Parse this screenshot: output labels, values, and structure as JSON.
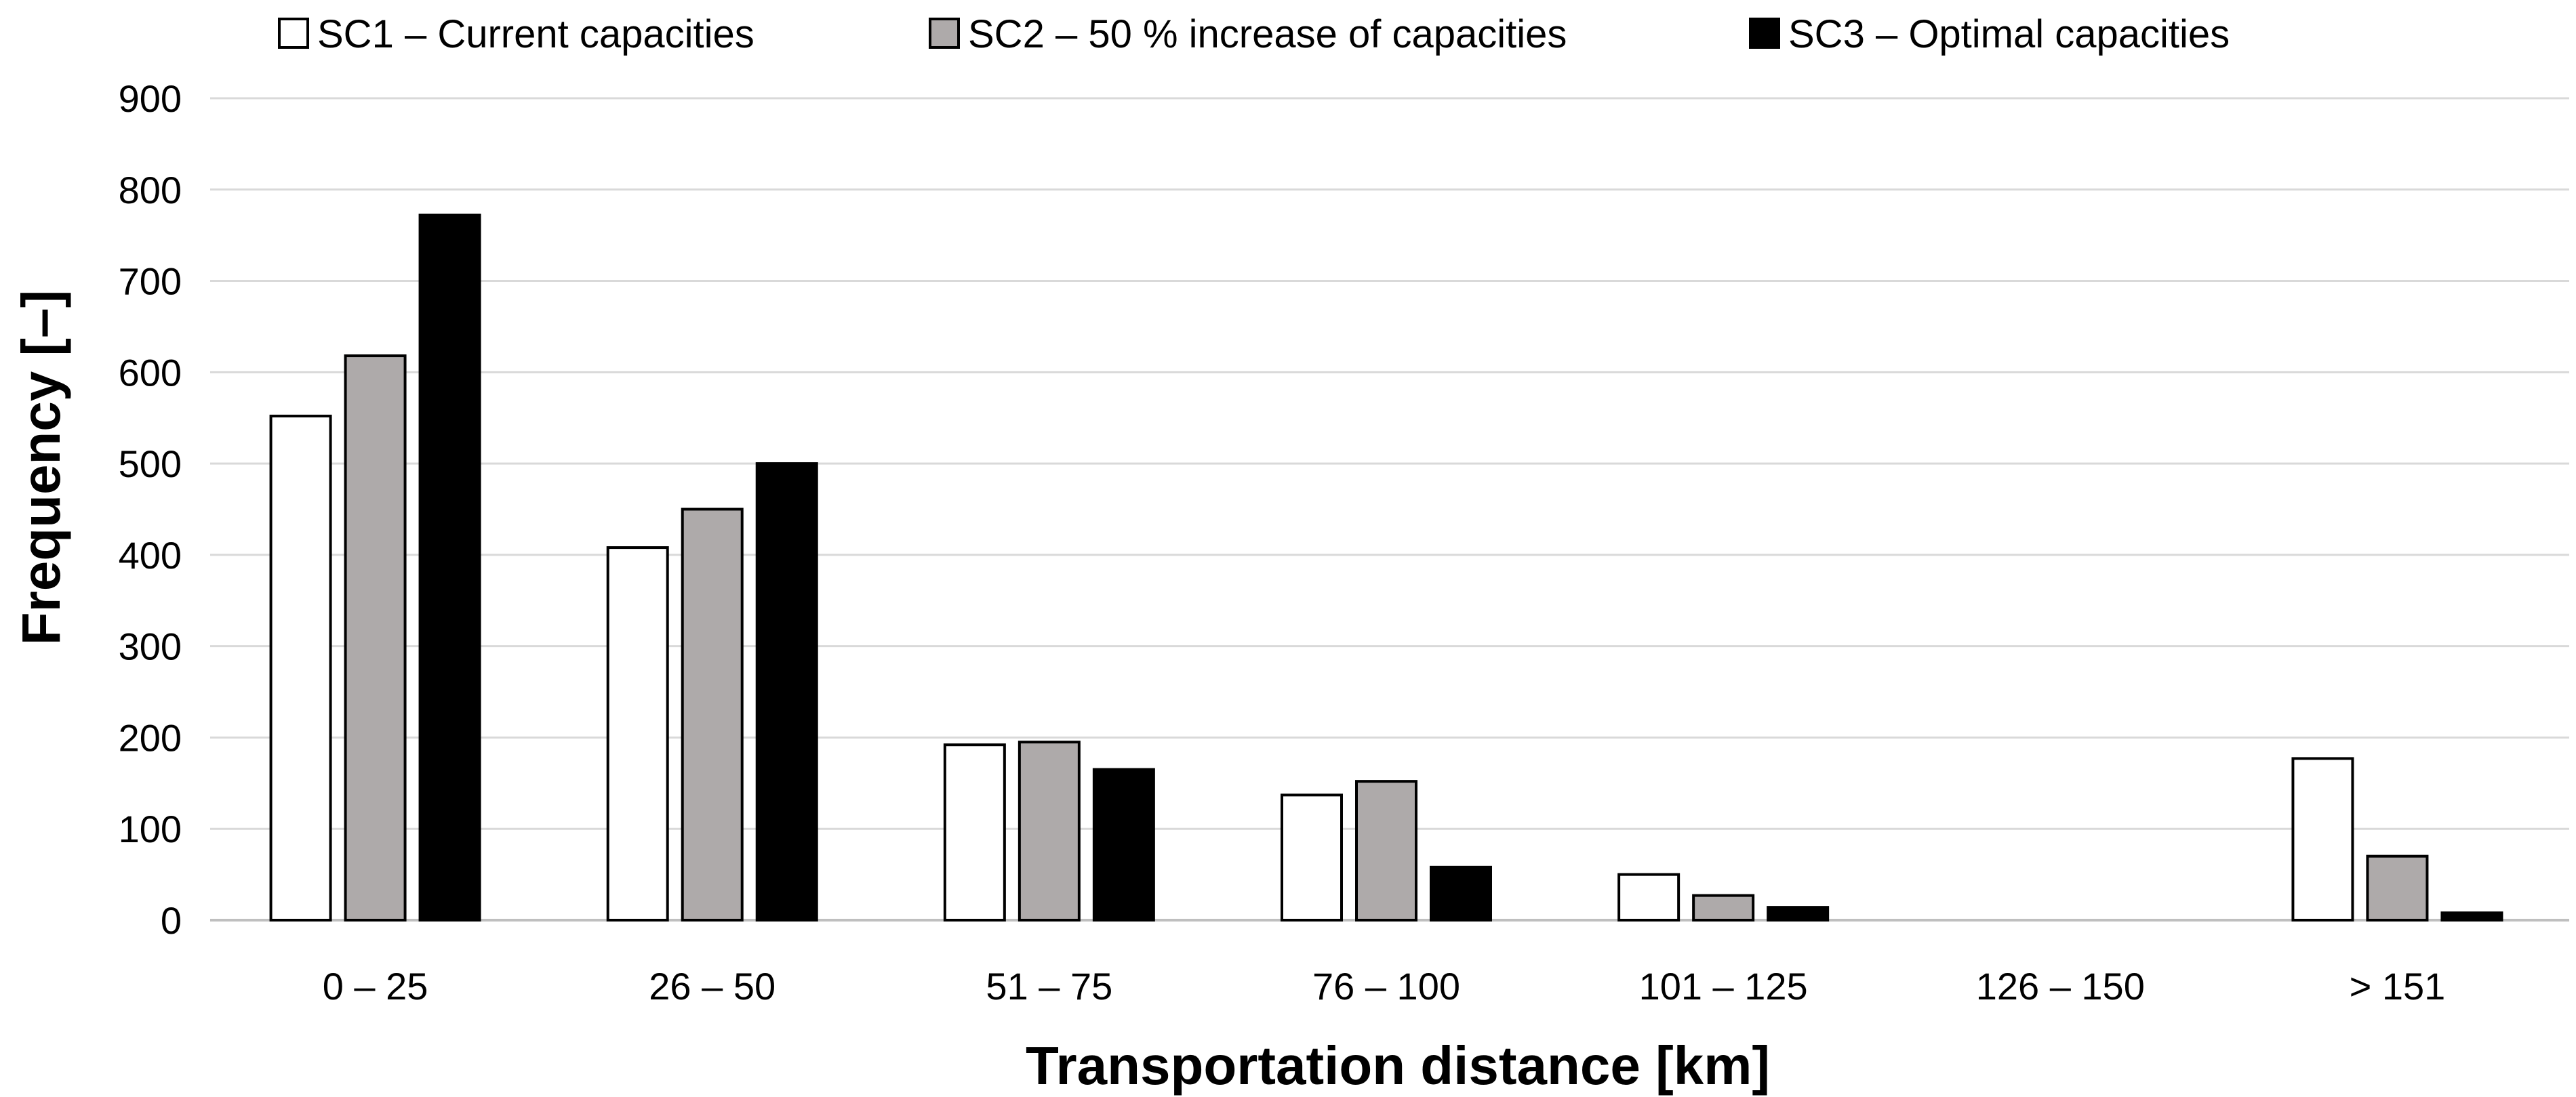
{
  "chart_data": {
    "type": "bar",
    "title": "",
    "xlabel": "Transportation distance [km]",
    "ylabel": "Frequency [–]",
    "ylim": [
      0,
      900
    ],
    "yticks": [
      0,
      100,
      200,
      300,
      400,
      500,
      600,
      700,
      800,
      900
    ],
    "grid": true,
    "legend_position": "top",
    "categories": [
      "0 – 25",
      "26 – 50",
      "51 – 75",
      "76 – 100",
      "101 – 125",
      "126 – 150",
      "> 151"
    ],
    "series": [
      {
        "name": "SC1 – Current capacities",
        "color": "#ffffff",
        "values": [
          552,
          408,
          192,
          137,
          50,
          0,
          177
        ]
      },
      {
        "name": "SC2 – 50 % increase of capacities",
        "color": "#aeaaaa",
        "values": [
          618,
          450,
          195,
          152,
          27,
          0,
          70
        ]
      },
      {
        "name": "SC3 – Optimal capacities",
        "color": "#000000",
        "values": [
          772,
          500,
          165,
          58,
          14,
          0,
          8
        ]
      }
    ]
  }
}
